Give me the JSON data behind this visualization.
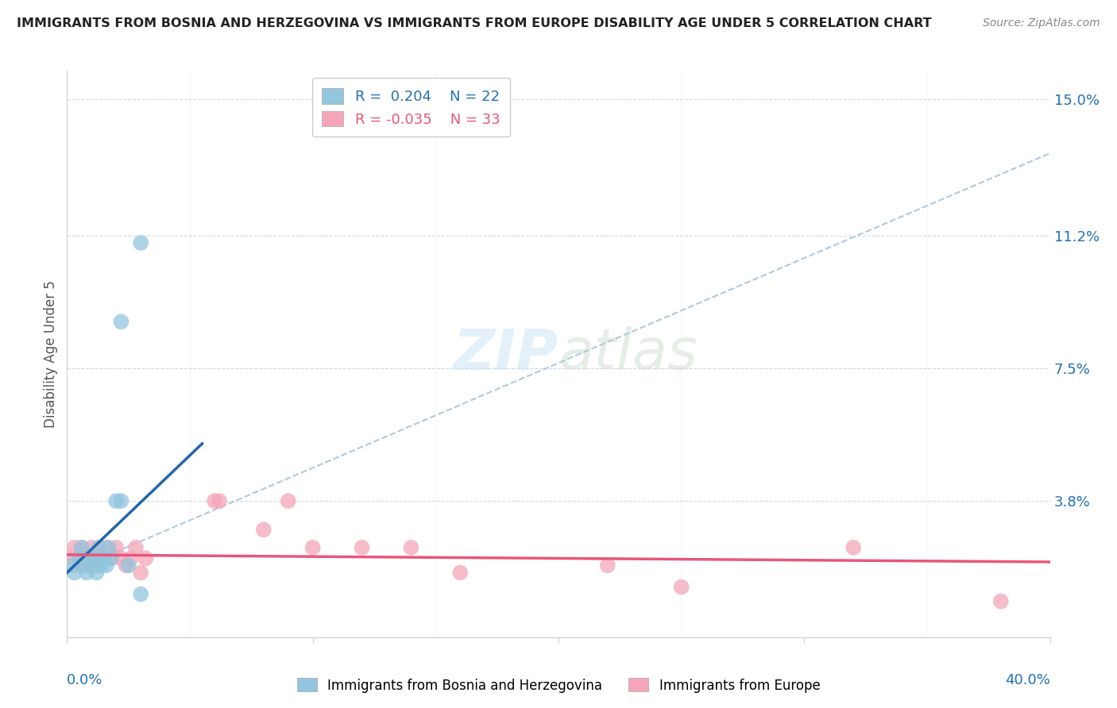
{
  "title": "IMMIGRANTS FROM BOSNIA AND HERZEGOVINA VS IMMIGRANTS FROM EUROPE DISABILITY AGE UNDER 5 CORRELATION CHART",
  "source": "Source: ZipAtlas.com",
  "ylabel": "Disability Age Under 5",
  "legend_blue_r": "R =  0.204",
  "legend_blue_n": "N = 22",
  "legend_pink_r": "R = -0.035",
  "legend_pink_n": "N = 33",
  "blue_color": "#92c5de",
  "pink_color": "#f4a6b8",
  "blue_line_color": "#2166ac",
  "pink_line_color": "#e8567a",
  "dashed_line_color": "#aec9e0",
  "grid_color": "#d0d8e0",
  "xlim": [
    0.0,
    0.4
  ],
  "ylim": [
    0.0,
    0.158
  ],
  "ytick_positions": [
    0.038,
    0.075,
    0.112,
    0.15
  ],
  "ytick_labels": [
    "3.8%",
    "7.5%",
    "11.2%",
    "15.0%"
  ],
  "blue_scatter_x": [
    0.002,
    0.003,
    0.005,
    0.006,
    0.007,
    0.008,
    0.009,
    0.01,
    0.011,
    0.012,
    0.013,
    0.014,
    0.015,
    0.016,
    0.017,
    0.018,
    0.02,
    0.022,
    0.025,
    0.03,
    0.022,
    0.03
  ],
  "blue_scatter_y": [
    0.02,
    0.018,
    0.022,
    0.025,
    0.02,
    0.018,
    0.022,
    0.02,
    0.022,
    0.018,
    0.025,
    0.02,
    0.022,
    0.02,
    0.025,
    0.022,
    0.038,
    0.038,
    0.02,
    0.012,
    0.088,
    0.11
  ],
  "pink_scatter_x": [
    0.002,
    0.003,
    0.005,
    0.006,
    0.007,
    0.008,
    0.009,
    0.01,
    0.011,
    0.012,
    0.013,
    0.014,
    0.016,
    0.018,
    0.02,
    0.022,
    0.024,
    0.026,
    0.028,
    0.03,
    0.032,
    0.06,
    0.062,
    0.08,
    0.09,
    0.1,
    0.12,
    0.14,
    0.16,
    0.22,
    0.25,
    0.32,
    0.38
  ],
  "pink_scatter_y": [
    0.022,
    0.025,
    0.02,
    0.025,
    0.02,
    0.022,
    0.02,
    0.025,
    0.022,
    0.02,
    0.025,
    0.022,
    0.025,
    0.022,
    0.025,
    0.022,
    0.02,
    0.022,
    0.025,
    0.018,
    0.022,
    0.038,
    0.038,
    0.03,
    0.038,
    0.025,
    0.025,
    0.025,
    0.018,
    0.02,
    0.014,
    0.025,
    0.01
  ],
  "blue_line_x0": 0.0,
  "blue_line_x1": 0.055,
  "blue_line_y0": 0.018,
  "blue_line_y1": 0.054,
  "dashed_line_x0": 0.0,
  "dashed_line_x1": 0.4,
  "dashed_line_y0": 0.018,
  "dashed_line_y1": 0.135,
  "pink_line_x0": 0.0,
  "pink_line_x1": 0.4,
  "pink_line_y0": 0.023,
  "pink_line_y1": 0.021
}
